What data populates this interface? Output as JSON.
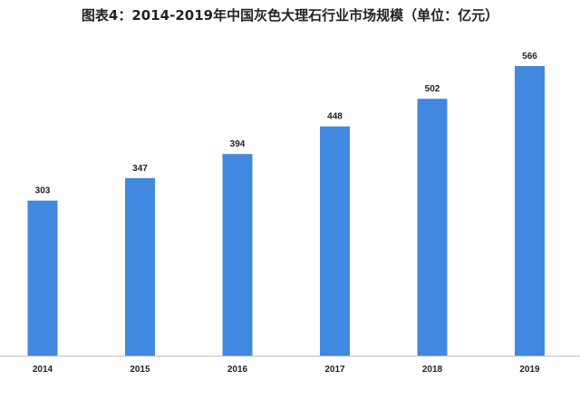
{
  "title": "图表4：2014-2019年中国灰色大理石行业市场规模（单位：亿元）",
  "colors": {
    "bar": "#4188e0",
    "axis": "#bfbfbf",
    "text": "#222222"
  },
  "chart_data": {
    "type": "bar",
    "title": "图表4：2014-2019年中国灰色大理石行业市场规模（单位：亿元）",
    "categories": [
      "2014",
      "2015",
      "2016",
      "2017",
      "2018",
      "2019"
    ],
    "values": [
      303,
      347,
      394,
      448,
      502,
      566
    ],
    "data_labels": [
      "303",
      "347",
      "394",
      "448",
      "502",
      "566"
    ],
    "xlabel": "",
    "ylabel": "",
    "ylim": [
      0,
      600
    ],
    "grid": false,
    "legend": "none",
    "y_axis_visible": false
  }
}
